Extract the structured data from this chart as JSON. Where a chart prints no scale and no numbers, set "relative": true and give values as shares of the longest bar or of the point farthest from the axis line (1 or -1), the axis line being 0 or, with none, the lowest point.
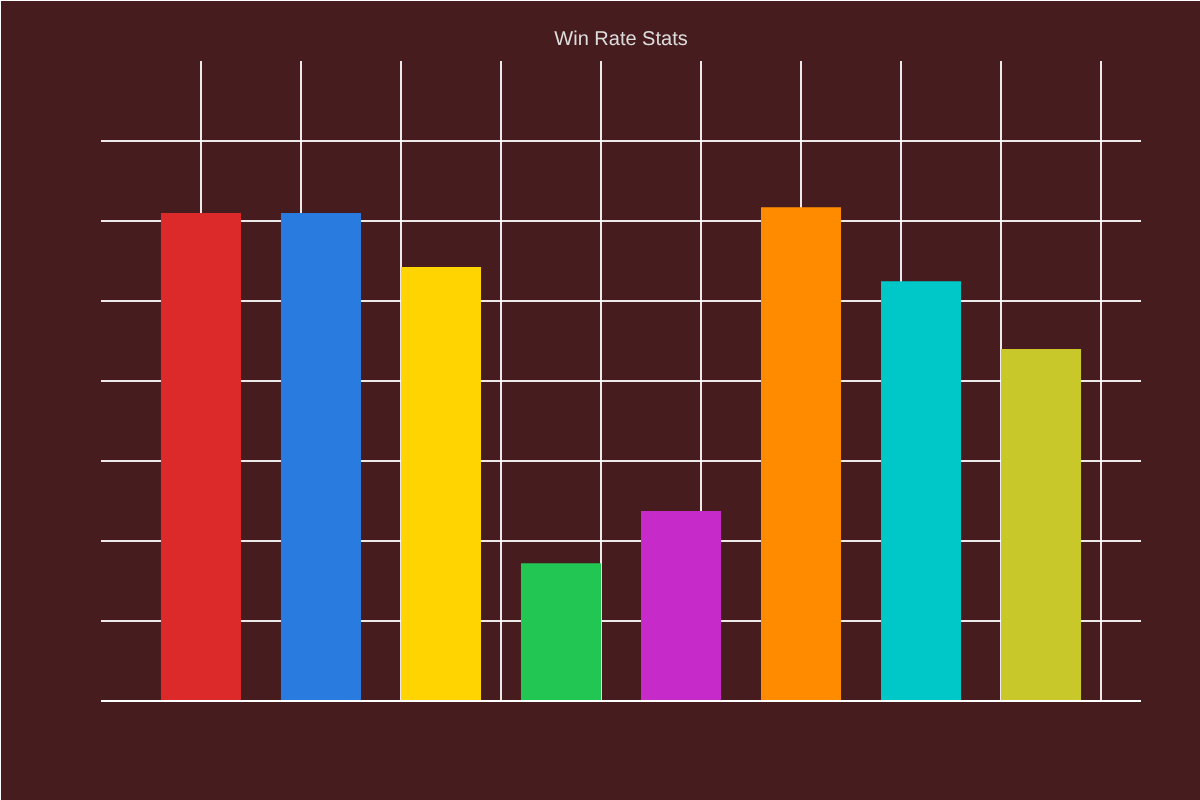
{
  "chart_data": {
    "type": "bar",
    "title": "Win Rate Stats",
    "relative": true,
    "grid": true,
    "categories": [
      null,
      null,
      null,
      null,
      null,
      null,
      null,
      null
    ],
    "values": [
      0.988,
      0.988,
      0.879,
      0.279,
      0.385,
      1,
      0.85,
      0.713
    ],
    "colors": [
      "#dc2a2a",
      "#2a7be0",
      "#ffd400",
      "#22c653",
      "#c62ac9",
      "#ff8c00",
      "#00c8c8",
      "#c8c82a"
    ]
  }
}
